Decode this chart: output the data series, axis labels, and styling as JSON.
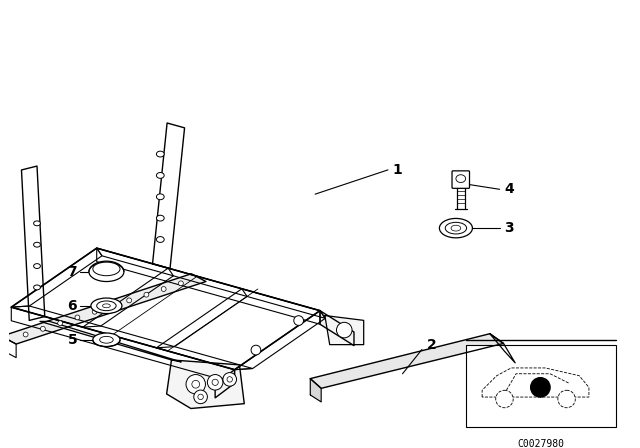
{
  "background_color": "#ffffff",
  "line_color": "#000000",
  "text_color": "#000000",
  "code_text": "C0027980",
  "font_size_label": 10,
  "font_size_code": 7,
  "figsize": [
    6.4,
    4.48
  ],
  "dpi": 100
}
